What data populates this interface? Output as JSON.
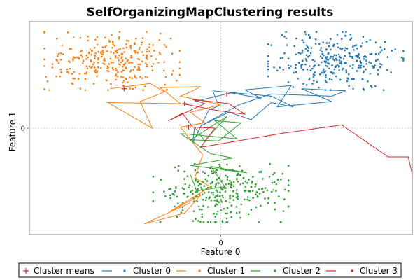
{
  "chart_data": {
    "type": "scatter",
    "title": "SelfOrganizingMapClustering results",
    "xlabel": "Feature 0",
    "ylabel": "Feature 1",
    "xlim": [
      -9.5,
      9.5
    ],
    "ylim": [
      -10,
      10
    ],
    "x_ticks": [
      {
        "value": 0,
        "label": "0"
      }
    ],
    "y_ticks": [
      {
        "value": 0,
        "label": "0"
      }
    ],
    "grid": true,
    "legend_position": "bottom",
    "legend": [
      {
        "label": "Cluster means",
        "marker": "cross",
        "color": "#d62728"
      },
      {
        "label": "Cluster 0",
        "color": "#1f77b4"
      },
      {
        "label": "Cluster 1",
        "color": "#ff7f0e"
      },
      {
        "label": "Cluster 2",
        "color": "#2ca02c"
      },
      {
        "label": "Cluster 3",
        "color": "#d62728"
      }
    ],
    "clusters": [
      {
        "name": "Cluster 0",
        "color": "#1f77b4",
        "center": [
          5.7,
          6.3
        ],
        "spread": [
          1.6,
          1.3
        ],
        "count": 300
      },
      {
        "name": "Cluster 1",
        "color": "#ff7f0e",
        "center": [
          -5.4,
          6.3
        ],
        "spread": [
          1.6,
          1.3
        ],
        "count": 300
      },
      {
        "name": "Cluster 2",
        "color": "#2ca02c",
        "center": [
          0.0,
          -6.1
        ],
        "spread": [
          1.6,
          1.3
        ],
        "count": 300
      }
    ],
    "trajectories": [
      {
        "name": "Cluster 0",
        "color": "#1f77b4",
        "points": [
          [
            -1.3,
            2.5
          ],
          [
            0.5,
            3.3
          ],
          [
            2.0,
            2.8
          ],
          [
            1.2,
            3.6
          ],
          [
            3.5,
            4.0
          ],
          [
            2.8,
            2.0
          ],
          [
            5.5,
            2.5
          ],
          [
            4.0,
            3.7
          ],
          [
            6.2,
            3.5
          ],
          [
            5.5,
            3.0
          ],
          [
            2.5,
            3.2
          ],
          [
            0.9,
            2.2
          ],
          [
            -1.0,
            0.2
          ],
          [
            0.4,
            1.5
          ],
          [
            1.5,
            0.8
          ],
          [
            2.5,
            2.4
          ],
          [
            3.6,
            2.0
          ],
          [
            2.5,
            3.0
          ],
          [
            -0.4,
            3.5
          ],
          [
            -0.1,
            2.1
          ],
          [
            -0.6,
            1.7
          ],
          [
            -1.4,
            -1.4
          ],
          [
            -1.3,
            0.1
          ]
        ]
      },
      {
        "name": "Cluster 1",
        "color": "#ff7f0e",
        "points": [
          [
            -5.5,
            3.7
          ],
          [
            -3.5,
            4.2
          ],
          [
            -2.8,
            3.4
          ],
          [
            -4.0,
            2.5
          ],
          [
            -3.4,
            0.0
          ],
          [
            -5.6,
            2.4
          ],
          [
            -2.0,
            2.3
          ],
          [
            -3.0,
            3.8
          ],
          [
            -1.0,
            3.9
          ],
          [
            -1.5,
            3.4
          ],
          [
            -2.0,
            3.0
          ],
          [
            0.0,
            2.2
          ],
          [
            -1.5,
            1.5
          ],
          [
            -0.8,
            0.5
          ],
          [
            -2.0,
            0.1
          ],
          [
            -0.9,
            -2.5
          ],
          [
            -1.3,
            -4.7
          ],
          [
            -0.5,
            -5.5
          ],
          [
            -2.5,
            -7.8
          ],
          [
            -1.0,
            -6.3
          ],
          [
            -1.8,
            -8.0
          ],
          [
            -3.8,
            -9.0
          ],
          [
            -1.5,
            -7.0
          ]
        ]
      },
      {
        "name": "Cluster 2",
        "color": "#2ca02c",
        "points": [
          [
            -1.3,
            0.1
          ],
          [
            -0.8,
            -1.2
          ],
          [
            0.3,
            1.1
          ],
          [
            -1.5,
            -1.1
          ],
          [
            -0.1,
            -1.2
          ],
          [
            1.0,
            0.5
          ],
          [
            -0.3,
            0.7
          ],
          [
            0.8,
            -1.0
          ],
          [
            -2.0,
            -0.5
          ],
          [
            -0.5,
            -2.4
          ],
          [
            0.6,
            -2.8
          ],
          [
            -1.5,
            -3.5
          ],
          [
            1.3,
            -4.2
          ],
          [
            -0.5,
            -3.6
          ],
          [
            0.2,
            -5.5
          ],
          [
            -1.2,
            -5.9
          ],
          [
            -1.5,
            -4.4
          ]
        ]
      },
      {
        "name": "Cluster 3",
        "color": "#d62728",
        "points": [
          [
            -1.9,
            2.3
          ],
          [
            -0.3,
            1.7
          ],
          [
            1.2,
            1.3
          ],
          [
            0.4,
            2.3
          ],
          [
            -1.4,
            2.7
          ],
          [
            -0.8,
            2.3
          ],
          [
            -2.6,
            0.7
          ],
          [
            -1.9,
            1.4
          ],
          [
            -1.4,
            0.1
          ],
          [
            -0.3,
            0.0
          ],
          [
            -1.0,
            -1.8
          ],
          [
            3.0,
            -0.5
          ],
          [
            6.0,
            0.3
          ],
          [
            8.3,
            -2.7
          ],
          [
            9.3,
            -2.7
          ],
          [
            9.5,
            -4.3
          ],
          [
            10.5,
            -4.3
          ],
          [
            12.8,
            -4.3
          ]
        ]
      }
    ],
    "cluster_means": [
      [
        -4.8,
        3.7
      ],
      [
        -1.8,
        2.3
      ],
      [
        0.3,
        3.2
      ],
      [
        -1.6,
        0.1
      ]
    ]
  }
}
